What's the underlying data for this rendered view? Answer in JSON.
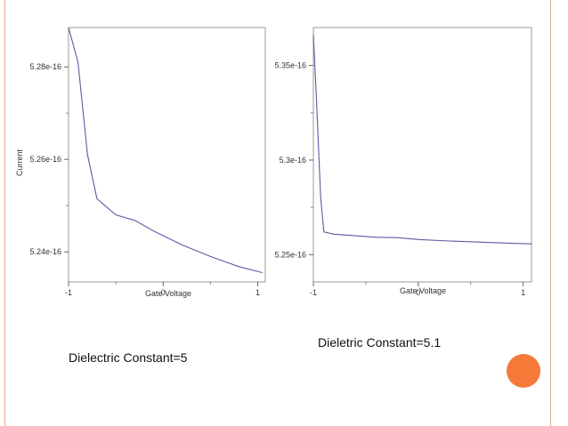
{
  "theme": {
    "accent": "#f57a38",
    "rule": "#e8a890",
    "line": "#5a5aa0"
  },
  "captions": {
    "left": "Dielectric Constant=5",
    "right": "Dieletric Constant=5.1"
  },
  "chart_data": [
    {
      "type": "line",
      "title": "",
      "xlabel": "Gate Voltage",
      "ylabel": "Current",
      "xlim": [
        -1,
        1.08
      ],
      "ylim": [
        5.2335e-16,
        5.2885e-16
      ],
      "xticks": [
        -1,
        0,
        1
      ],
      "xtick_labels": [
        "-1",
        "0",
        "1"
      ],
      "yticks": [
        5.24e-16,
        5.26e-16,
        5.28e-16
      ],
      "ytick_labels": [
        "5.24e-16",
        "5.26e-16",
        "5.28e-16"
      ],
      "grid": false,
      "series": [
        {
          "x": [
            -1.0,
            -0.9,
            -0.8,
            -0.7,
            -0.5,
            -0.3,
            -0.1,
            0.2,
            0.5,
            0.8,
            1.05
          ],
          "y": [
            5.2885e-16,
            5.281e-16,
            5.261e-16,
            5.2515e-16,
            5.248e-16,
            5.2468e-16,
            5.2445e-16,
            5.2415e-16,
            5.239e-16,
            5.2368e-16,
            5.2355e-16
          ]
        }
      ]
    },
    {
      "type": "line",
      "title": "",
      "xlabel": "Gate Voltage",
      "ylabel": "",
      "xlim": [
        -1,
        1.08
      ],
      "ylim": [
        5.2356e-16,
        5.37e-16
      ],
      "xticks": [
        -1,
        0,
        1
      ],
      "xtick_labels": [
        "-1",
        "0",
        "1"
      ],
      "yticks": [
        5.25e-16,
        5.3e-16,
        5.35e-16
      ],
      "ytick_labels": [
        "5.25e-16",
        "5.3e-16",
        "5.35e-16"
      ],
      "grid": false,
      "series": [
        {
          "x": [
            -1.0,
            -0.97,
            -0.93,
            -0.9,
            -0.8,
            -0.6,
            -0.4,
            -0.2,
            0.0,
            0.3,
            0.6,
            0.9,
            1.08
          ],
          "y": [
            5.366e-16,
            5.332e-16,
            5.28e-16,
            5.262e-16,
            5.2608e-16,
            5.26e-16,
            5.2592e-16,
            5.259e-16,
            5.258e-16,
            5.2572e-16,
            5.2566e-16,
            5.256e-16,
            5.2557e-16
          ]
        }
      ]
    }
  ]
}
